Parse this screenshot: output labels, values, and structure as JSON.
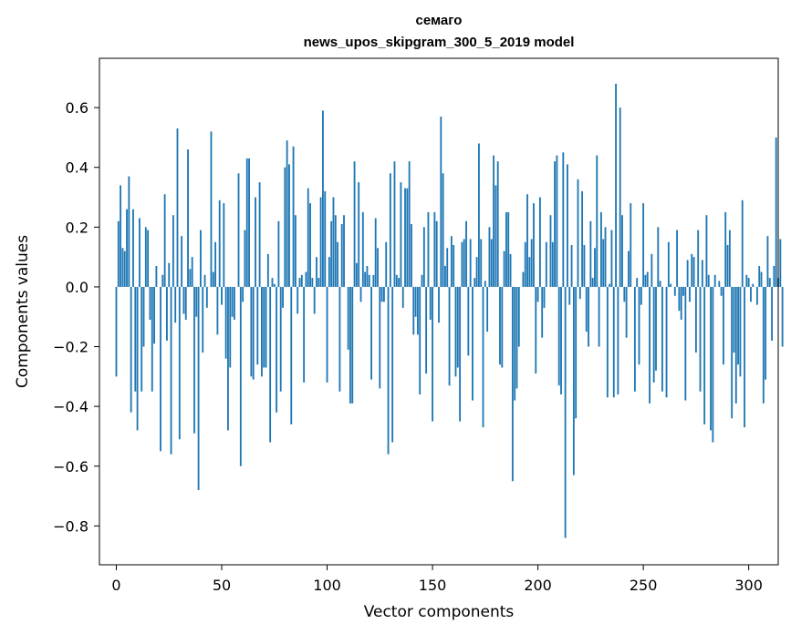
{
  "chart_data": {
    "type": "bar",
    "title_lines": [
      "семаго",
      "news_upos_skipgram_300_5_2019 model"
    ],
    "xlabel": "Vector components",
    "ylabel": "Components values",
    "xlim": [
      -8,
      314
    ],
    "ylim": [
      -0.93,
      0.765
    ],
    "xticks": [
      0,
      50,
      100,
      150,
      200,
      250,
      300
    ],
    "yticks": [
      -0.8,
      -0.6,
      -0.4,
      -0.2,
      0.0,
      0.2,
      0.4,
      0.6
    ],
    "ytick_labels": [
      "−0.8",
      "−0.6",
      "−0.4",
      "−0.2",
      "0.0",
      "0.2",
      "0.4",
      "0.6"
    ],
    "grid": false,
    "bar_color": "#1f77b4",
    "values": [
      -0.3,
      0.22,
      0.34,
      0.13,
      0.12,
      0.26,
      0.37,
      -0.42,
      0.26,
      -0.35,
      -0.48,
      0.23,
      -0.35,
      -0.2,
      0.2,
      0.19,
      -0.11,
      -0.35,
      -0.19,
      0.07,
      0.0,
      -0.55,
      0.04,
      0.31,
      -0.18,
      0.08,
      -0.56,
      0.24,
      -0.12,
      0.53,
      -0.51,
      0.17,
      -0.09,
      -0.11,
      0.46,
      0.06,
      0.1,
      -0.49,
      -0.1,
      -0.68,
      0.19,
      -0.22,
      0.04,
      -0.07,
      0.0,
      0.52,
      0.05,
      0.15,
      -0.16,
      0.29,
      -0.06,
      0.28,
      -0.24,
      -0.48,
      -0.27,
      -0.1,
      -0.11,
      0.0,
      0.38,
      -0.6,
      -0.05,
      0.19,
      0.43,
      0.43,
      -0.3,
      -0.31,
      0.3,
      -0.26,
      0.35,
      -0.3,
      -0.27,
      -0.27,
      0.11,
      -0.52,
      0.03,
      0.01,
      -0.42,
      0.22,
      -0.35,
      -0.07,
      0.4,
      0.49,
      0.41,
      -0.46,
      0.47,
      0.24,
      -0.09,
      0.03,
      0.04,
      -0.32,
      0.05,
      0.33,
      0.28,
      0.03,
      -0.09,
      0.1,
      0.03,
      0.3,
      0.59,
      0.32,
      -0.32,
      0.1,
      0.22,
      0.3,
      0.24,
      0.15,
      -0.35,
      0.21,
      0.24,
      0.0,
      -0.21,
      -0.39,
      -0.39,
      0.42,
      0.08,
      0.35,
      -0.05,
      0.25,
      0.05,
      0.07,
      0.04,
      -0.31,
      0.04,
      0.23,
      0.13,
      -0.34,
      -0.05,
      -0.05,
      0.15,
      -0.56,
      0.38,
      -0.52,
      0.42,
      0.04,
      0.03,
      0.35,
      -0.07,
      0.33,
      0.33,
      0.42,
      0.21,
      -0.16,
      -0.1,
      -0.16,
      -0.36,
      0.04,
      0.2,
      -0.29,
      0.25,
      -0.11,
      -0.45,
      0.25,
      0.22,
      -0.12,
      0.57,
      0.38,
      0.07,
      0.13,
      -0.33,
      0.17,
      0.14,
      -0.3,
      -0.27,
      -0.45,
      0.15,
      0.16,
      0.22,
      -0.23,
      0.16,
      -0.38,
      0.03,
      0.1,
      0.48,
      0.16,
      -0.47,
      0.02,
      -0.15,
      0.2,
      0.16,
      0.44,
      0.34,
      0.42,
      -0.26,
      -0.27,
      0.12,
      0.25,
      0.25,
      0.11,
      -0.65,
      -0.38,
      -0.34,
      -0.2,
      0.0,
      0.05,
      0.15,
      0.31,
      0.1,
      0.16,
      0.28,
      -0.29,
      -0.05,
      0.3,
      -0.17,
      -0.07,
      0.15,
      0.0,
      0.24,
      0.15,
      0.42,
      0.44,
      -0.33,
      -0.36,
      0.45,
      -0.84,
      0.41,
      -0.06,
      0.14,
      -0.63,
      -0.44,
      0.36,
      -0.04,
      0.32,
      0.14,
      -0.15,
      -0.2,
      0.22,
      0.03,
      0.13,
      0.44,
      -0.2,
      0.25,
      0.16,
      0.2,
      -0.37,
      0.01,
      0.19,
      -0.37,
      0.68,
      -0.36,
      0.6,
      0.24,
      -0.05,
      -0.17,
      0.12,
      0.28,
      0.0,
      -0.35,
      0.03,
      -0.26,
      -0.06,
      0.28,
      0.04,
      0.05,
      -0.39,
      0.11,
      -0.32,
      -0.28,
      0.2,
      0.02,
      -0.35,
      0.0,
      -0.37,
      0.15,
      0.01,
      0.0,
      -0.03,
      0.19,
      -0.08,
      -0.11,
      -0.03,
      -0.38,
      0.09,
      -0.05,
      0.11,
      0.1,
      -0.22,
      0.19,
      -0.35,
      0.09,
      -0.46,
      0.24,
      0.04,
      -0.48,
      -0.52,
      0.04,
      0.0,
      0.02,
      -0.03,
      -0.26,
      0.25,
      0.14,
      0.19,
      -0.44,
      -0.22,
      -0.39,
      -0.26,
      -0.3,
      0.29,
      -0.47,
      0.04,
      0.03,
      -0.05,
      0.01,
      0.0,
      -0.06,
      0.07,
      0.05,
      -0.39,
      -0.31,
      0.17,
      0.03,
      -0.18,
      0.07,
      0.5,
      0.03,
      0.16,
      -0.2
    ]
  }
}
